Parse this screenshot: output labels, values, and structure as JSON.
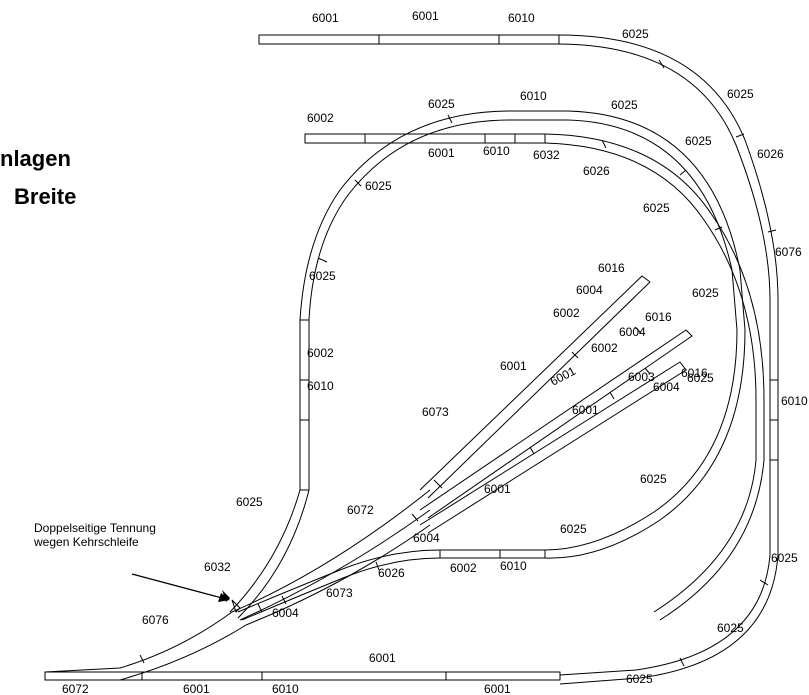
{
  "heading": {
    "line1": "nlagen",
    "line2": "Breite"
  },
  "annotation": {
    "line1": "Doppelseitige Tennung",
    "line2": "wegen Kehrschleife"
  },
  "track_labels": [
    "6001",
    "6001",
    "6010",
    "6025",
    "6025",
    "6025",
    "6026",
    "6002",
    "6025",
    "6010",
    "6025",
    "6025",
    "6001",
    "6010",
    "6032",
    "6026",
    "6025",
    "6025",
    "6076",
    "6016",
    "6004",
    "6025",
    "6002",
    "6016",
    "6004",
    "6002",
    "6002",
    "6001",
    "6001",
    "6016",
    "6004",
    "6003",
    "6025",
    "6001",
    "6010",
    "6010",
    "6073",
    "6001",
    "6025",
    "6025",
    "6072",
    "6025",
    "6004",
    "6025",
    "6032",
    "6026",
    "6002",
    "6010",
    "6073",
    "6004",
    "6076",
    "6025",
    "6001",
    "6025",
    "6072",
    "6001",
    "6010",
    "6001"
  ]
}
